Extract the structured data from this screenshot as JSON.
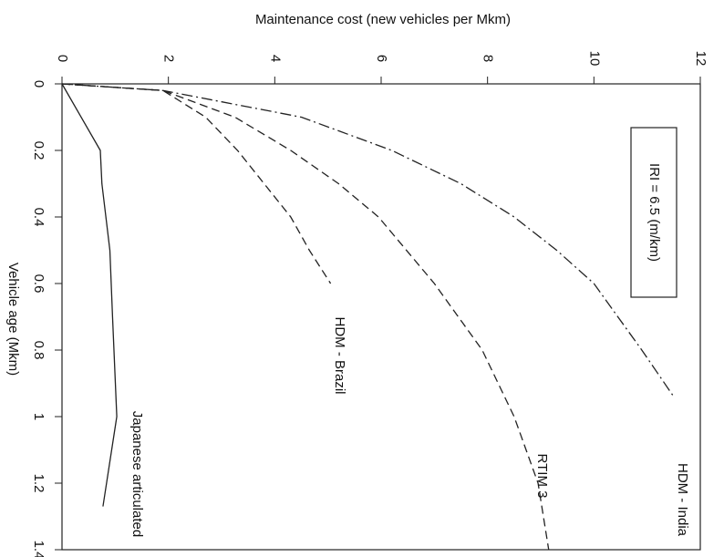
{
  "chart_data": {
    "type": "line",
    "orientation": "rotated-90",
    "ylabel": "Maintenance cost (new vehicles per Mkm)",
    "xlabel": "Vehicle age (Mkm)",
    "xlim": [
      0,
      1.4
    ],
    "xticks": [
      0,
      0.2,
      0.4,
      0.6,
      0.8,
      1,
      1.2,
      1.4
    ],
    "ylim": [
      0,
      12
    ],
    "yticks": [
      0,
      2,
      4,
      6,
      8,
      10,
      12
    ],
    "annotations": [
      "IRI = 6.5 (m/km)"
    ],
    "series": [
      {
        "name": "HDM - India",
        "color": "#222",
        "style": "dashdot",
        "x": [
          0,
          0.02,
          0.1,
          0.2,
          0.3,
          0.4,
          0.5,
          0.6,
          0.8,
          0.94
        ],
        "values": [
          0,
          1.9,
          4.5,
          6.2,
          7.5,
          8.5,
          9.3,
          10.0,
          10.9,
          11.5
        ]
      },
      {
        "name": "RTIM 3",
        "color": "#222",
        "style": "dashed",
        "x": [
          0,
          0.02,
          0.1,
          0.2,
          0.3,
          0.4,
          0.6,
          0.8,
          1.0,
          1.2,
          1.4
        ],
        "values": [
          0,
          1.9,
          3.25,
          4.3,
          5.2,
          5.95,
          7.0,
          7.9,
          8.5,
          8.95,
          9.15
        ]
      },
      {
        "name": "HDM - Brazil",
        "color": "#222",
        "style": "dashed",
        "x": [
          0,
          0.02,
          0.1,
          0.2,
          0.3,
          0.4,
          0.5,
          0.6
        ],
        "values": [
          0,
          1.9,
          2.7,
          3.3,
          3.8,
          4.3,
          4.65,
          5.05
        ]
      },
      {
        "name": "Japanese articulated",
        "color": "#222",
        "style": "solid",
        "x": [
          0,
          0.2,
          0.3,
          0.5,
          0.7,
          1.0,
          1.27
        ],
        "values": [
          0,
          0.72,
          0.75,
          0.9,
          0.95,
          1.03,
          0.77
        ]
      }
    ]
  }
}
